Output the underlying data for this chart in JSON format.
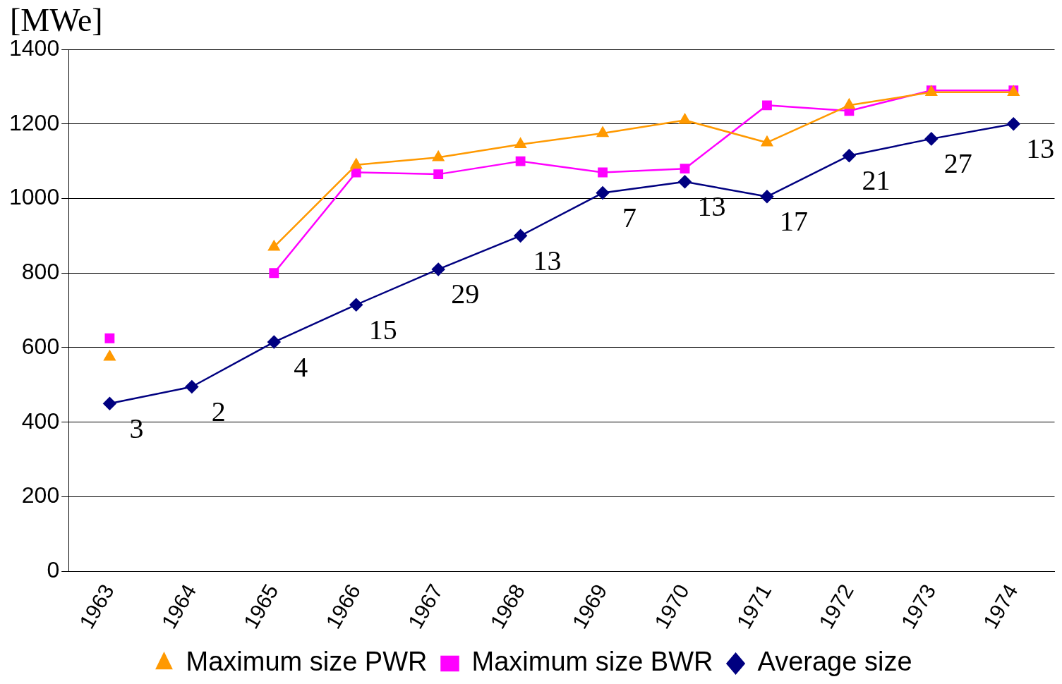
{
  "chart_data": {
    "type": "line",
    "ylabel": "[MWe]",
    "categories": [
      "1963",
      "1964",
      "1965",
      "1966",
      "1967",
      "1968",
      "1969",
      "1970",
      "1971",
      "1972",
      "1973",
      "1974"
    ],
    "series": [
      {
        "name": "Average size",
        "color": "#000080",
        "marker": "diamond",
        "values": [
          450,
          495,
          615,
          715,
          810,
          900,
          1015,
          1045,
          1005,
          1115,
          1160,
          1200
        ]
      },
      {
        "name": "Maximum size BWR",
        "color": "#ff00ff",
        "marker": "square",
        "values": [
          625,
          null,
          800,
          1070,
          1065,
          1100,
          1070,
          1080,
          1250,
          1235,
          1290,
          1290
        ]
      },
      {
        "name": "Maximum size PWR",
        "color": "#ff9900",
        "marker": "triangle",
        "values": [
          575,
          null,
          870,
          1090,
          1110,
          1145,
          1175,
          1210,
          1150,
          1250,
          1285,
          1285
        ]
      }
    ],
    "annotations": [
      {
        "text": "3",
        "x": "1963",
        "y": 450
      },
      {
        "text": "2",
        "x": "1964",
        "y": 495
      },
      {
        "text": "4",
        "x": "1965",
        "y": 615
      },
      {
        "text": "15",
        "x": "1966",
        "y": 715
      },
      {
        "text": "29",
        "x": "1967",
        "y": 810
      },
      {
        "text": "13",
        "x": "1968",
        "y": 900
      },
      {
        "text": "7",
        "x": "1969",
        "y": 1015
      },
      {
        "text": "13",
        "x": "1970",
        "y": 1045
      },
      {
        "text": "17",
        "x": "1971",
        "y": 1005
      },
      {
        "text": "21",
        "x": "1972",
        "y": 1115
      },
      {
        "text": "27",
        "x": "1973",
        "y": 1160
      },
      {
        "text": "13",
        "x": "1974",
        "y": 1200
      }
    ],
    "ylim": [
      0,
      1400
    ],
    "yticks": [
      0,
      200,
      400,
      600,
      800,
      1000,
      1200,
      1400
    ],
    "grid": "y",
    "legend": "bottom",
    "line_style": "solid"
  }
}
